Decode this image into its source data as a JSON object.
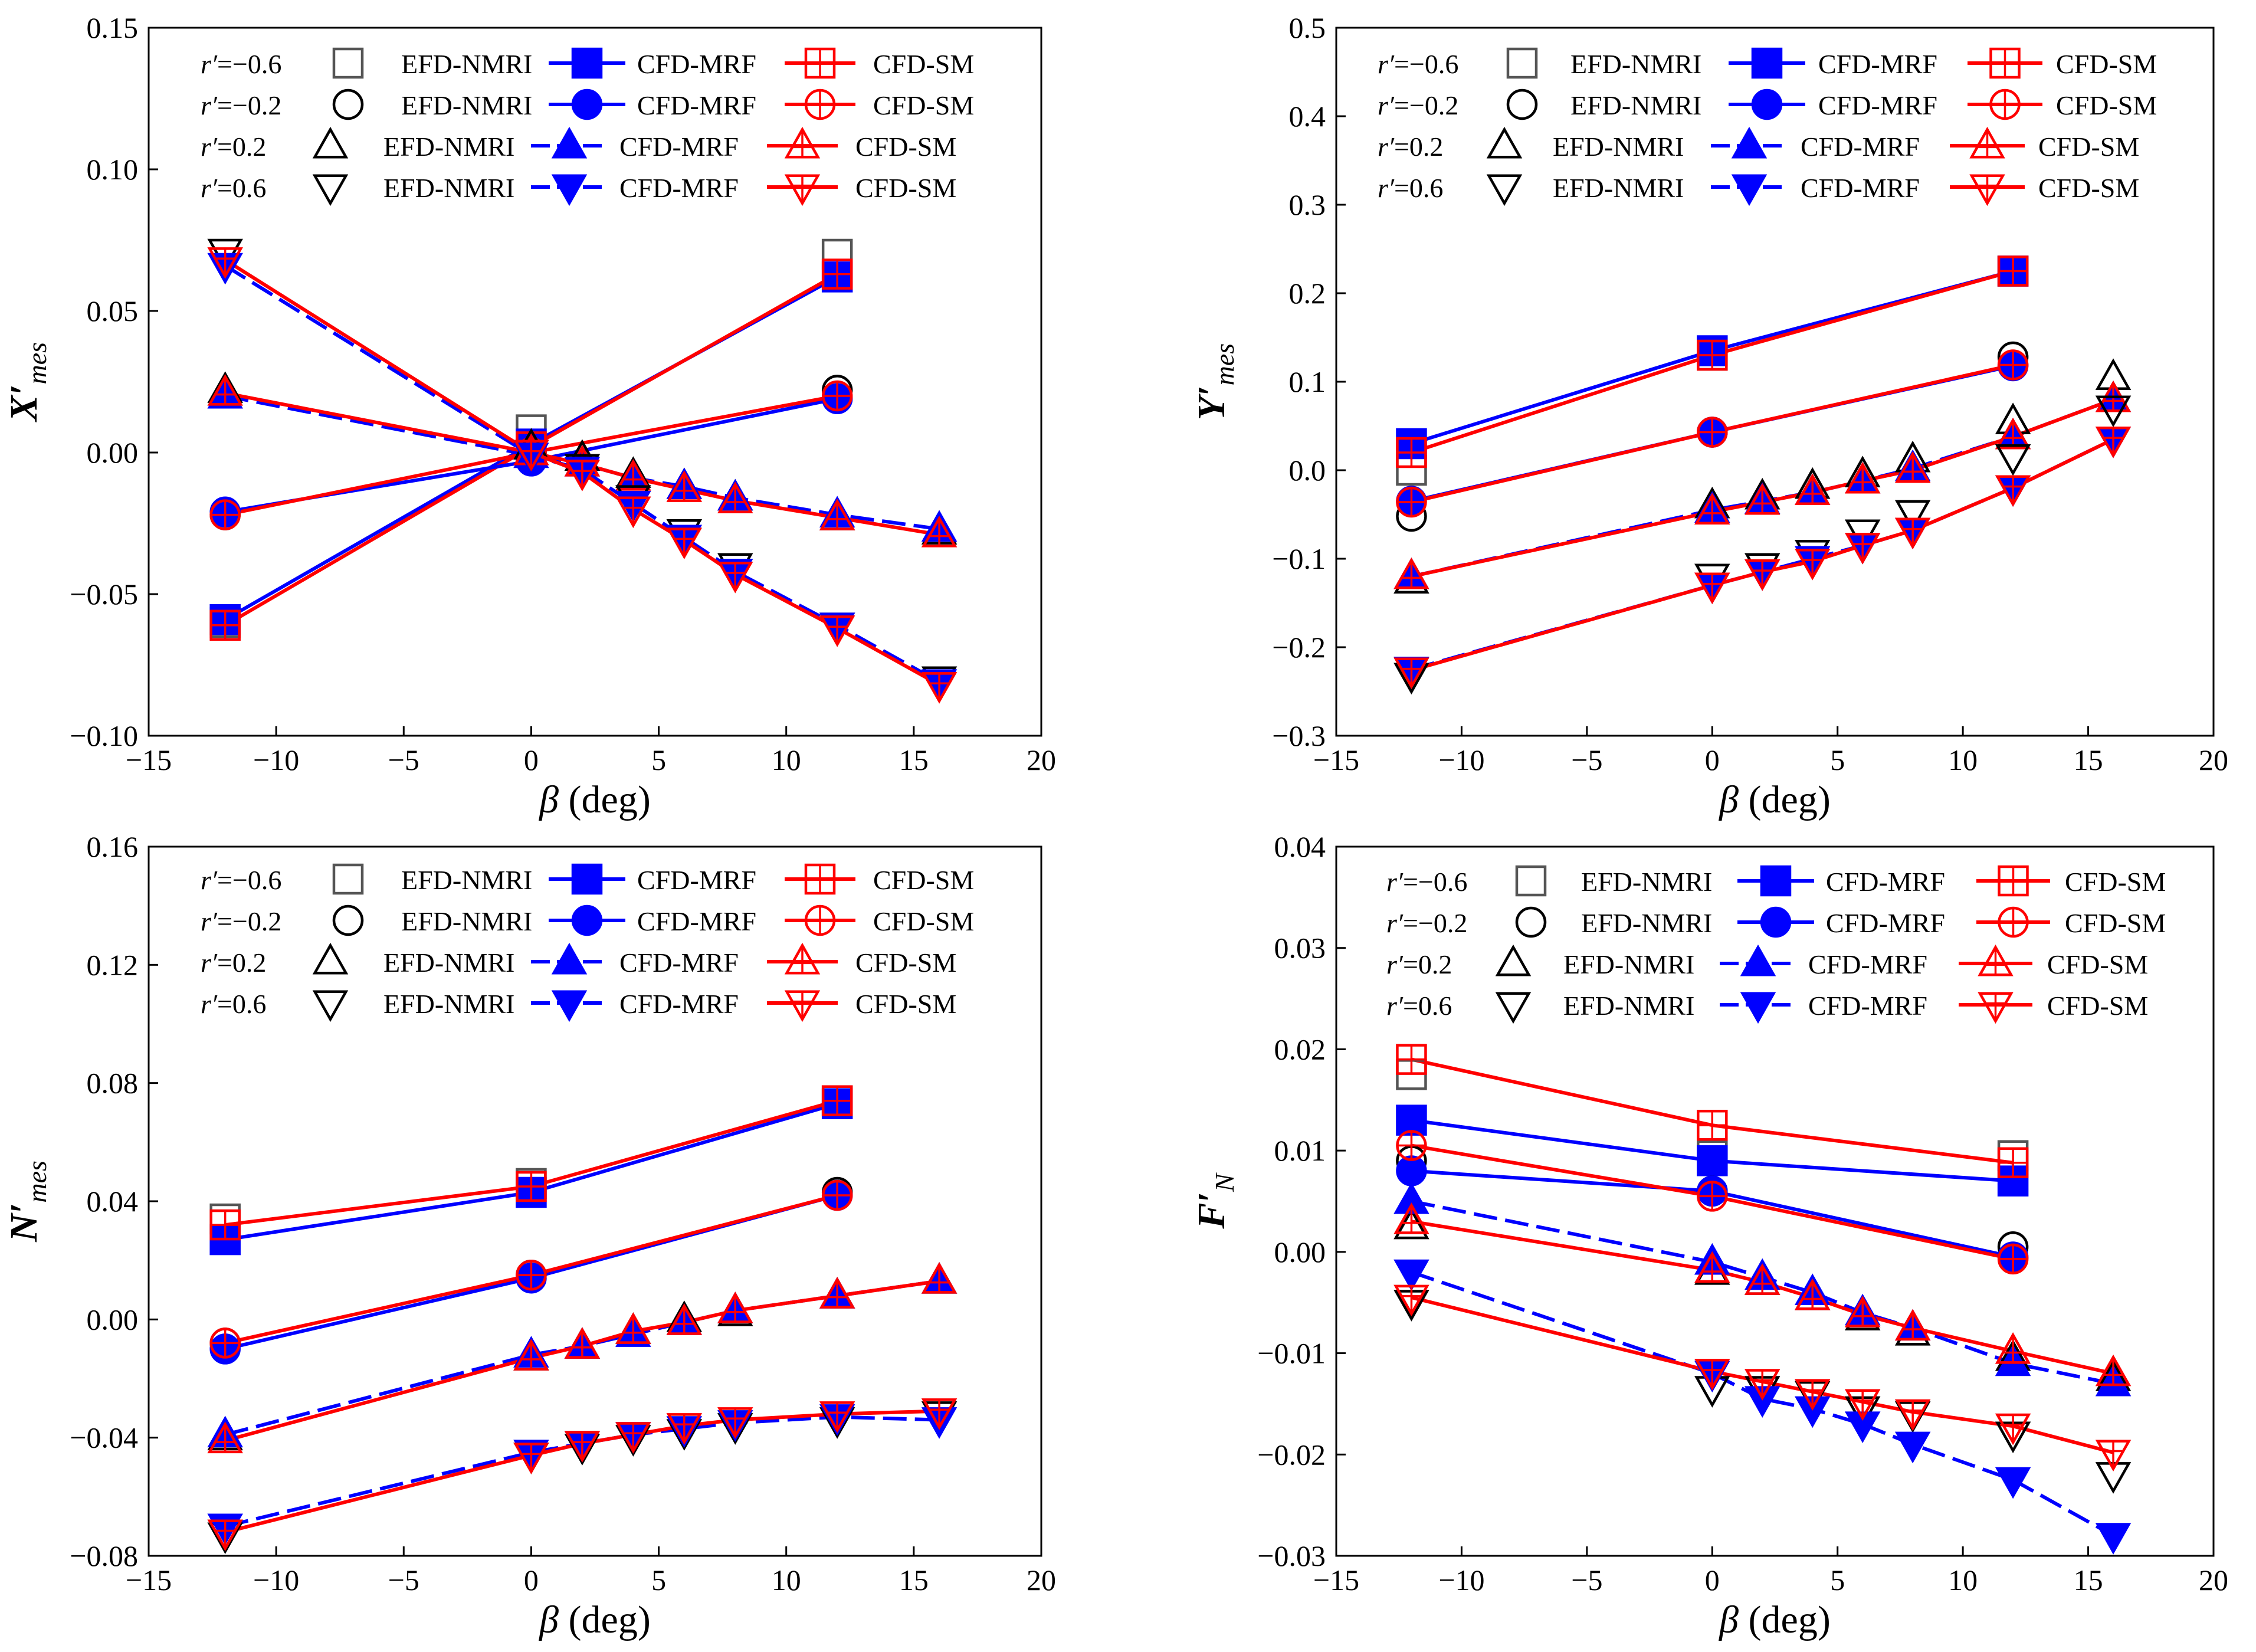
{
  "colors": {
    "efd": "#000000",
    "efd_square": "#555555",
    "mrf": "#0000ff",
    "sm": "#ff0000"
  },
  "legend": {
    "series_labels": {
      "efd": "EFD-NMRI",
      "mrf": "CFD-MRF",
      "sm": "CFD-SM"
    },
    "rows": [
      {
        "r_text": "=−0.6",
        "marker": "square"
      },
      {
        "r_text": "=−0.2",
        "marker": "circle"
      },
      {
        "r_text": "=0.2",
        "marker": "tri_up"
      },
      {
        "r_text": "=0.6",
        "marker": "tri_down"
      }
    ]
  },
  "chart_data": [
    {
      "type": "line",
      "ylabel": {
        "main": "X′",
        "sub": "mes"
      },
      "xlabel": {
        "greek": "β",
        "rest": " (deg)"
      },
      "xlim": [
        -15,
        20
      ],
      "ylim": [
        -0.1,
        0.15
      ],
      "xticks": [
        -15,
        -10,
        -5,
        0,
        5,
        10,
        15,
        20
      ],
      "xtick_labels": [
        "−15",
        "−10",
        "−5",
        "0",
        "5",
        "10",
        "15",
        "20"
      ],
      "yticks": [
        -0.1,
        -0.05,
        0.0,
        0.05,
        0.1,
        0.15
      ],
      "ytick_labels": [
        "−0.10",
        "−0.05",
        "0.00",
        "0.05",
        "0.10",
        "0.15"
      ],
      "groups": [
        {
          "r": "-0.6",
          "x": [
            -12,
            0,
            12
          ],
          "efd": [
            -0.06,
            0.008,
            0.07
          ],
          "mrf": [
            -0.059,
            0.003,
            0.062
          ],
          "sm": [
            -0.061,
            0.002,
            0.063
          ]
        },
        {
          "r": "-0.2",
          "x": [
            -12,
            0,
            12
          ],
          "efd": [
            -0.022,
            0.0,
            0.022
          ],
          "mrf": [
            -0.021,
            -0.003,
            0.019
          ],
          "sm": [
            -0.022,
            0.0,
            0.02
          ]
        },
        {
          "r": "0.2",
          "x": [
            -12,
            0,
            2,
            4,
            6,
            8,
            12,
            16
          ],
          "efd": [
            0.022,
            0.002,
            -0.002,
            -0.008,
            -0.012,
            -0.016,
            -0.023,
            -0.028
          ],
          "mrf": [
            0.02,
            -0.001,
            -0.004,
            -0.009,
            -0.012,
            -0.016,
            -0.022,
            -0.027
          ],
          "sm": [
            0.021,
            0.0,
            -0.004,
            -0.009,
            -0.013,
            -0.017,
            -0.023,
            -0.029
          ]
        },
        {
          "r": "0.6",
          "x": [
            -12,
            0,
            2,
            4,
            6,
            8,
            12,
            16
          ],
          "efd": [
            0.071,
            0.0,
            -0.005,
            -0.016,
            -0.028,
            -0.04,
            -0.061,
            -0.08
          ],
          "mrf": [
            0.066,
            -0.001,
            -0.006,
            -0.018,
            -0.03,
            -0.042,
            -0.061,
            -0.081
          ],
          "sm": [
            0.068,
            0.0,
            -0.007,
            -0.02,
            -0.031,
            -0.043,
            -0.062,
            -0.082
          ]
        }
      ]
    },
    {
      "type": "line",
      "ylabel": {
        "main": "Y′",
        "sub": "mes"
      },
      "xlabel": {
        "greek": "β",
        "rest": " (deg)"
      },
      "xlim": [
        -15,
        20
      ],
      "ylim": [
        -0.3,
        0.5
      ],
      "xticks": [
        -15,
        -10,
        -5,
        0,
        5,
        10,
        15,
        20
      ],
      "xtick_labels": [
        "−15",
        "−10",
        "−5",
        "0",
        "5",
        "10",
        "15",
        "20"
      ],
      "yticks": [
        -0.3,
        -0.2,
        -0.1,
        0.0,
        0.1,
        0.2,
        0.3,
        0.4,
        0.5
      ],
      "ytick_labels": [
        "−0.3",
        "−0.2",
        "−0.1",
        "0.0",
        "0.1",
        "0.2",
        "0.3",
        "0.4",
        "0.5"
      ],
      "groups": [
        {
          "r": "-0.6",
          "x": [
            -12,
            0,
            12
          ],
          "efd": [
            0.0,
            0.13,
            0.225
          ],
          "mrf": [
            0.03,
            0.135,
            0.225
          ],
          "sm": [
            0.02,
            0.13,
            0.225
          ]
        },
        {
          "r": "-0.2",
          "x": [
            -12,
            0,
            12
          ],
          "efd": [
            -0.052,
            0.043,
            0.128
          ],
          "mrf": [
            -0.035,
            0.043,
            0.118
          ],
          "sm": [
            -0.036,
            0.043,
            0.119
          ]
        },
        {
          "r": "0.2",
          "x": [
            -12,
            0,
            2,
            4,
            6,
            8,
            12,
            16
          ],
          "efd": [
            -0.125,
            -0.04,
            -0.03,
            -0.018,
            -0.005,
            0.012,
            0.055,
            0.105
          ],
          "mrf": [
            -0.12,
            -0.045,
            -0.035,
            -0.025,
            -0.012,
            0.002,
            0.038,
            0.08
          ],
          "sm": [
            -0.12,
            -0.047,
            -0.036,
            -0.025,
            -0.012,
            0.0,
            0.038,
            0.08
          ]
        },
        {
          "r": "0.6",
          "x": [
            -12,
            0,
            2,
            4,
            6,
            8,
            12,
            16
          ],
          "efd": [
            -0.232,
            -0.12,
            -0.108,
            -0.093,
            -0.07,
            -0.048,
            0.015,
            0.07
          ],
          "mrf": [
            -0.225,
            -0.13,
            -0.115,
            -0.1,
            -0.085,
            -0.068,
            -0.02,
            0.035
          ],
          "sm": [
            -0.226,
            -0.13,
            -0.115,
            -0.103,
            -0.085,
            -0.068,
            -0.02,
            0.035
          ]
        }
      ]
    },
    {
      "type": "line",
      "ylabel": {
        "main": "N′",
        "sub": "mes"
      },
      "xlabel": {
        "greek": "β",
        "rest": " (deg)"
      },
      "xlim": [
        -15,
        20
      ],
      "ylim": [
        -0.08,
        0.16
      ],
      "xticks": [
        -15,
        -10,
        -5,
        0,
        5,
        10,
        15,
        20
      ],
      "xtick_labels": [
        "−15",
        "−10",
        "−5",
        "0",
        "5",
        "10",
        "15",
        "20"
      ],
      "yticks": [
        -0.08,
        -0.04,
        0.0,
        0.04,
        0.08,
        0.12,
        0.16
      ],
      "ytick_labels": [
        "−0.08",
        "−0.04",
        "0.00",
        "0.04",
        "0.08",
        "0.12",
        "0.16"
      ],
      "groups": [
        {
          "r": "-0.6",
          "x": [
            -12,
            0,
            12
          ],
          "efd": [
            0.034,
            0.046,
            0.074
          ],
          "mrf": [
            0.027,
            0.043,
            0.073
          ],
          "sm": [
            0.032,
            0.045,
            0.074
          ]
        },
        {
          "r": "-0.2",
          "x": [
            -12,
            0,
            12
          ],
          "efd": [
            -0.008,
            0.015,
            0.043
          ],
          "mrf": [
            -0.01,
            0.014,
            0.042
          ],
          "sm": [
            -0.008,
            0.015,
            0.042
          ]
        },
        {
          "r": "0.2",
          "x": [
            -12,
            0,
            2,
            4,
            6,
            8,
            12,
            16
          ],
          "efd": [
            -0.04,
            -0.013,
            -0.009,
            -0.004,
            0.0,
            0.002,
            0.008,
            0.013
          ],
          "mrf": [
            -0.039,
            -0.012,
            -0.009,
            -0.005,
            -0.001,
            0.003,
            0.008,
            0.013
          ],
          "sm": [
            -0.041,
            -0.013,
            -0.009,
            -0.004,
            -0.001,
            0.003,
            0.008,
            0.013
          ]
        },
        {
          "r": "0.6",
          "x": [
            -12,
            0,
            2,
            4,
            6,
            8,
            12,
            16
          ],
          "efd": [
            -0.073,
            -0.046,
            -0.043,
            -0.04,
            -0.038,
            -0.036,
            -0.034,
            -0.032
          ],
          "mrf": [
            -0.07,
            -0.045,
            -0.042,
            -0.039,
            -0.037,
            -0.035,
            -0.033,
            -0.034
          ],
          "sm": [
            -0.072,
            -0.046,
            -0.042,
            -0.039,
            -0.036,
            -0.034,
            -0.032,
            -0.031
          ]
        }
      ]
    },
    {
      "type": "line",
      "ylabel": {
        "main": "F′",
        "sub": "N"
      },
      "xlabel": {
        "greek": "β",
        "rest": " (deg)"
      },
      "xlim": [
        -15,
        20
      ],
      "ylim": [
        -0.03,
        0.04
      ],
      "xticks": [
        -15,
        -10,
        -5,
        0,
        5,
        10,
        15,
        20
      ],
      "xtick_labels": [
        "−15",
        "−10",
        "−5",
        "0",
        "5",
        "10",
        "15",
        "20"
      ],
      "yticks": [
        -0.03,
        -0.02,
        -0.01,
        0.0,
        0.01,
        0.02,
        0.03,
        0.04
      ],
      "ytick_labels": [
        "−0.03",
        "−0.02",
        "−0.01",
        "0.00",
        "0.01",
        "0.02",
        "0.03",
        "0.04"
      ],
      "groups": [
        {
          "r": "-0.6",
          "x": [
            -12,
            0,
            12
          ],
          "efd": [
            0.0175,
            0.0095,
            0.0095
          ],
          "mrf": [
            0.013,
            0.009,
            0.007
          ],
          "sm": [
            0.019,
            0.0125,
            0.0088
          ]
        },
        {
          "r": "-0.2",
          "x": [
            -12,
            0,
            12
          ],
          "efd": [
            0.009,
            0.006,
            0.0005
          ],
          "mrf": [
            0.008,
            0.006,
            -0.0005
          ],
          "sm": [
            0.0105,
            0.0055,
            -0.0007
          ]
        },
        {
          "r": "0.2",
          "x": [
            -12,
            0,
            2,
            4,
            6,
            8,
            12,
            16
          ],
          "efd": [
            0.0025,
            -0.002,
            -0.003,
            -0.0045,
            -0.0065,
            -0.008,
            -0.0105,
            -0.0125
          ],
          "mrf": [
            0.005,
            -0.001,
            -0.0025,
            -0.004,
            -0.006,
            -0.0075,
            -0.011,
            -0.013
          ],
          "sm": [
            0.003,
            -0.0018,
            -0.003,
            -0.0045,
            -0.0062,
            -0.0075,
            -0.0098,
            -0.012
          ]
        },
        {
          "r": "0.6",
          "x": [
            -12,
            0,
            2,
            4,
            6,
            8,
            12,
            16
          ],
          "efd": [
            -0.005,
            -0.0135,
            -0.0135,
            -0.014,
            -0.0155,
            -0.016,
            -0.018,
            -0.022
          ],
          "mrf": [
            -0.002,
            -0.012,
            -0.0145,
            -0.0155,
            -0.017,
            -0.019,
            -0.0225,
            -0.028
          ],
          "sm": [
            -0.0045,
            -0.0118,
            -0.0128,
            -0.0138,
            -0.0148,
            -0.0158,
            -0.0172,
            -0.0198
          ]
        }
      ]
    }
  ]
}
